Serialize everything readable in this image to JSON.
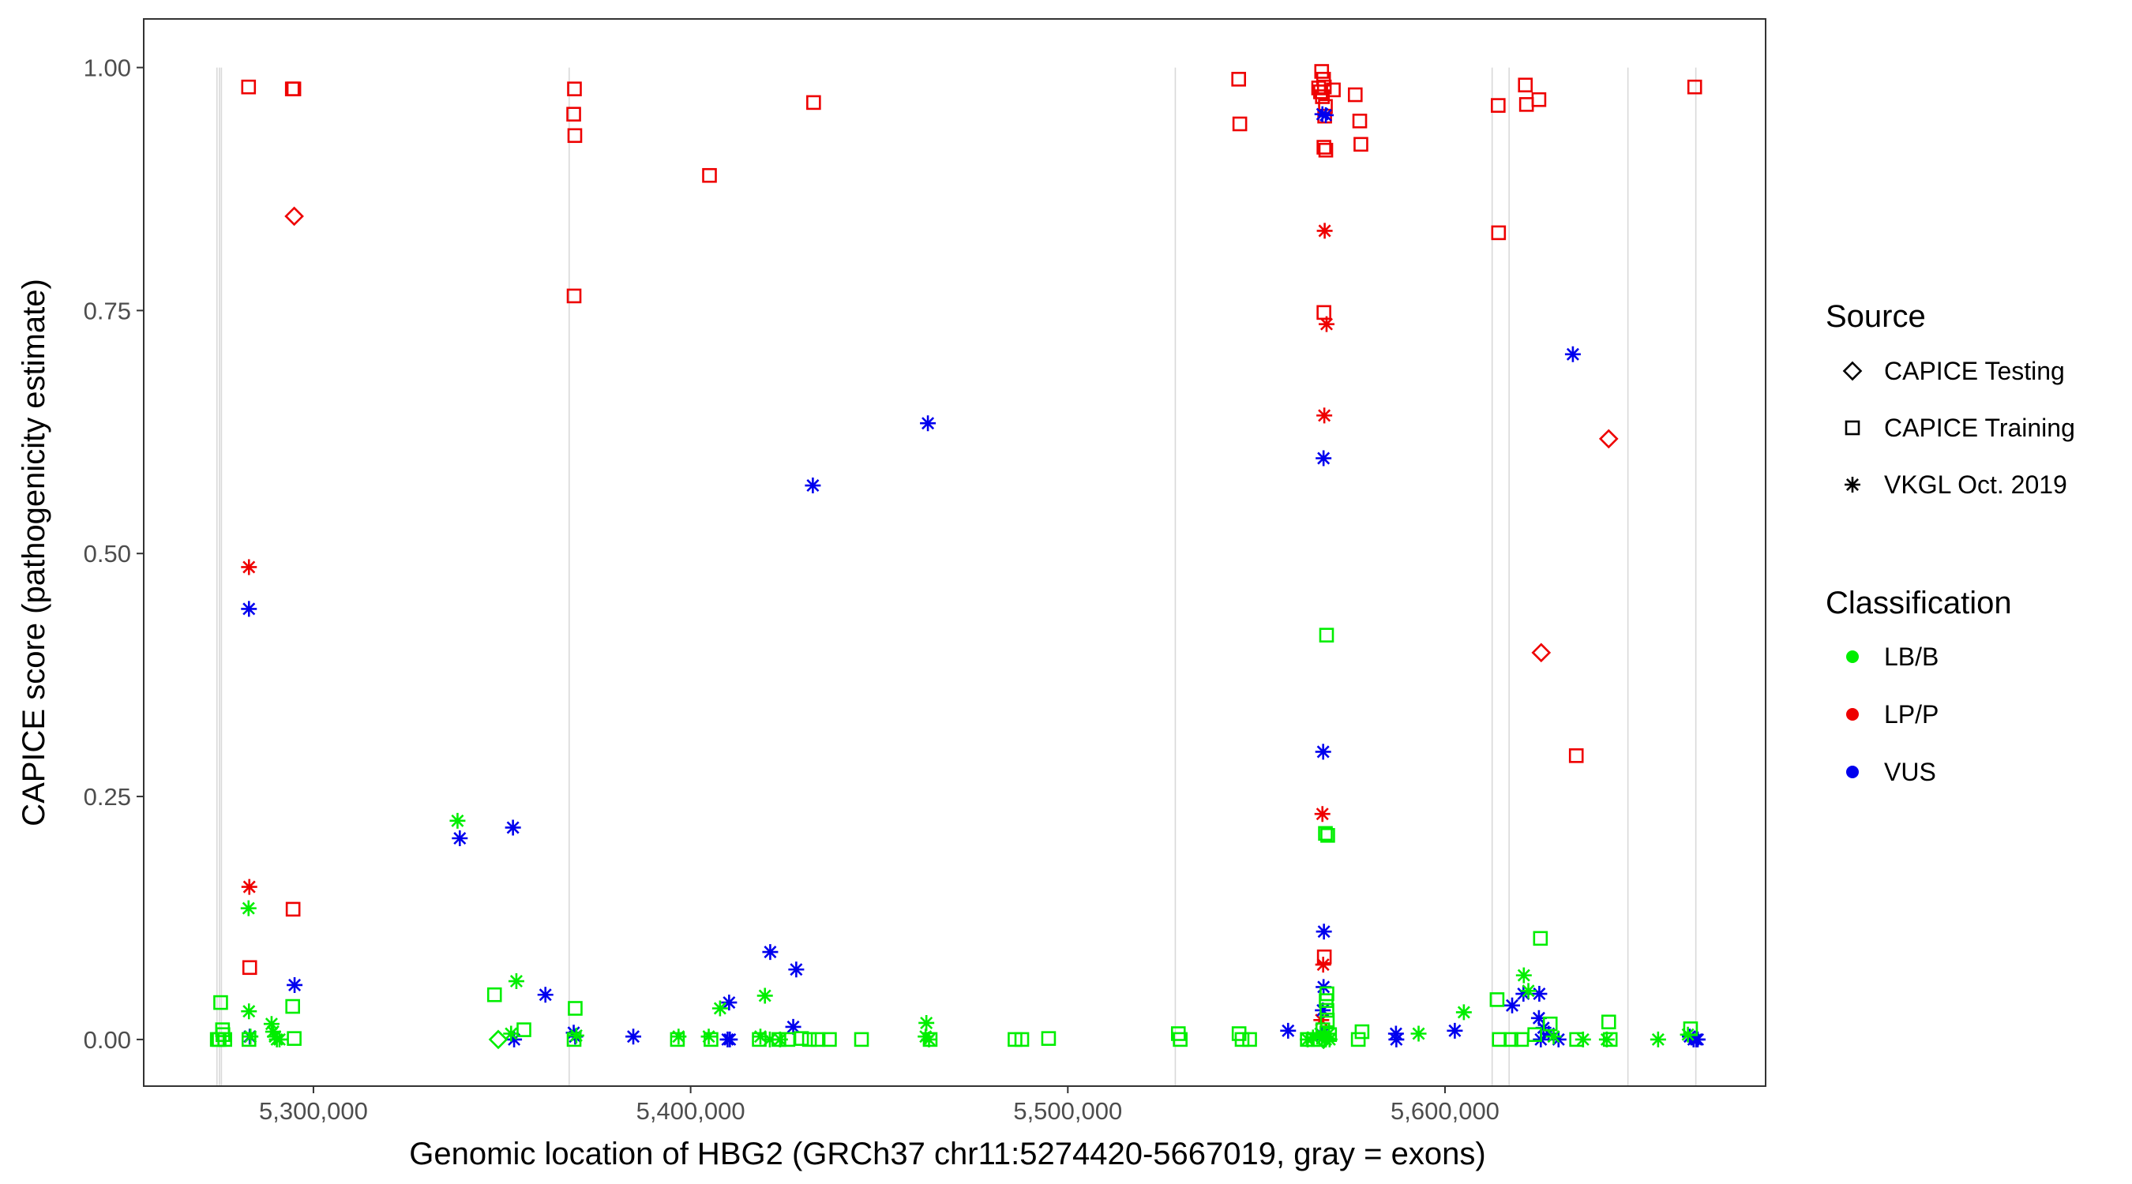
{
  "chart_data": {
    "type": "scatter",
    "xlabel": "Genomic location of HBG2 (GRCh37 chr11:5274420-5667019, gray = exons)",
    "ylabel": "CAPICE score (pathogenicity estimate)",
    "xlim": [
      5255000,
      5685000
    ],
    "ylim": [
      -0.048,
      1.05
    ],
    "grid": false,
    "x_ticks": [
      5300000,
      5400000,
      5500000,
      5600000
    ],
    "x_tick_labels": [
      "5,300,000",
      "5,400,000",
      "5,500,000",
      "5,600,000"
    ],
    "y_ticks": [
      0,
      0.25,
      0.5,
      0.75,
      1
    ],
    "y_tick_labels": [
      "0.00",
      "0.25",
      "0.50",
      "0.75",
      "1.00"
    ],
    "exon_positions": [
      5274420,
      5275100,
      5275600,
      5367800,
      5528500,
      5612500,
      5617000,
      5648500,
      5666500
    ],
    "exon_color": "#d9d9d9",
    "legend": {
      "placement": "right",
      "source_title": "Source",
      "source_items": [
        {
          "label": "CAPICE Testing",
          "shape": "diamond"
        },
        {
          "label": "CAPICE Training",
          "shape": "square"
        },
        {
          "label": "VKGL Oct. 2019",
          "shape": "asterisk"
        }
      ],
      "class_title": "Classification",
      "class_items": [
        {
          "label": "LB/B",
          "color": "#00ee00"
        },
        {
          "label": "LP/P",
          "color": "#ee0000"
        },
        {
          "label": "VUS",
          "color": "#0000ee"
        }
      ]
    },
    "colors": {
      "LB/B": "#00ee00",
      "LP/P": "#ee0000",
      "VUS": "#0000ee"
    },
    "series": [
      {
        "name": "CAPICE Training LP/P",
        "shape": "square",
        "class": "LP/P",
        "points": [
          [
            5282800,
            0.98
          ],
          [
            5294400,
            0.978
          ],
          [
            5294800,
            0.978
          ],
          [
            5369200,
            0.978
          ],
          [
            5369000,
            0.952
          ],
          [
            5369300,
            0.93
          ],
          [
            5369100,
            0.765
          ],
          [
            5405000,
            0.889
          ],
          [
            5432600,
            0.964
          ],
          [
            5545300,
            0.988
          ],
          [
            5545600,
            0.942
          ],
          [
            5566500,
            0.979
          ],
          [
            5567000,
            0.975
          ],
          [
            5567500,
            0.97
          ],
          [
            5568000,
            0.98
          ],
          [
            5567300,
            0.996
          ],
          [
            5567800,
            0.988
          ],
          [
            5568300,
            0.96
          ],
          [
            5568100,
            0.95
          ],
          [
            5567900,
            0.918
          ],
          [
            5568400,
            0.915
          ],
          [
            5570400,
            0.977
          ],
          [
            5576200,
            0.972
          ],
          [
            5577400,
            0.945
          ],
          [
            5577700,
            0.921
          ],
          [
            5614100,
            0.961
          ],
          [
            5614200,
            0.83
          ],
          [
            5621300,
            0.982
          ],
          [
            5621600,
            0.962
          ],
          [
            5624900,
            0.967
          ],
          [
            5634800,
            0.292
          ],
          [
            5666200,
            0.98
          ],
          [
            5567900,
            0.748
          ],
          [
            5568000,
            0.085
          ],
          [
            5294600,
            0.134
          ],
          [
            5283100,
            0.074
          ]
        ]
      },
      {
        "name": "CAPICE Testing LP/P",
        "shape": "diamond",
        "class": "LP/P",
        "points": [
          [
            5294900,
            0.847
          ],
          [
            5643400,
            0.618
          ],
          [
            5625500,
            0.398
          ]
        ]
      },
      {
        "name": "VKGL LP/P",
        "shape": "asterisk",
        "class": "LP/P",
        "points": [
          [
            5282900,
            0.486
          ],
          [
            5283000,
            0.157
          ],
          [
            5568100,
            0.832
          ],
          [
            5568600,
            0.736
          ],
          [
            5568000,
            0.642
          ],
          [
            5567500,
            0.232
          ],
          [
            5567700,
            0.077
          ],
          [
            5567200,
            0.02
          ]
        ]
      },
      {
        "name": "VKGL VUS",
        "shape": "asterisk",
        "class": "VUS",
        "points": [
          [
            5282900,
            0.443
          ],
          [
            5283100,
            0.003
          ],
          [
            5295000,
            0.056
          ],
          [
            5338800,
            0.207
          ],
          [
            5352900,
            0.218
          ],
          [
            5353200,
            0.0
          ],
          [
            5361500,
            0.046
          ],
          [
            5369000,
            0.007
          ],
          [
            5369400,
            0.003
          ],
          [
            5384800,
            0.003
          ],
          [
            5410200,
            0.038
          ],
          [
            5409800,
            0.0
          ],
          [
            5410400,
            0.0
          ],
          [
            5421100,
            0.09
          ],
          [
            5428000,
            0.072
          ],
          [
            5427200,
            0.013
          ],
          [
            5432400,
            0.57
          ],
          [
            5462900,
            0.634
          ],
          [
            5558400,
            0.009
          ],
          [
            5567500,
            0.952
          ],
          [
            5568400,
            0.951
          ],
          [
            5567800,
            0.598
          ],
          [
            5567700,
            0.296
          ],
          [
            5567900,
            0.111
          ],
          [
            5567800,
            0.054
          ],
          [
            5567600,
            0.03
          ],
          [
            5567400,
            0.005
          ],
          [
            5587000,
            0.006
          ],
          [
            5587100,
            0.0
          ],
          [
            5602600,
            0.009
          ],
          [
            5617800,
            0.035
          ],
          [
            5620800,
            0.047
          ],
          [
            5625000,
            0.047
          ],
          [
            5624900,
            0.022
          ],
          [
            5625400,
            0.0
          ],
          [
            5626100,
            0.012
          ],
          [
            5627500,
            0.006
          ],
          [
            5630100,
            0.0
          ],
          [
            5633900,
            0.705
          ],
          [
            5664900,
            0.003
          ],
          [
            5665900,
            0.0
          ],
          [
            5666600,
            0.0
          ],
          [
            5667000,
            0.0
          ]
        ]
      },
      {
        "name": "VKGL LB/B",
        "shape": "asterisk",
        "class": "LB/B",
        "points": [
          [
            5282800,
            0.135
          ],
          [
            5282900,
            0.029
          ],
          [
            5283300,
            0.003
          ],
          [
            5288900,
            0.016
          ],
          [
            5289300,
            0.008
          ],
          [
            5289800,
            0.003
          ],
          [
            5290300,
            0.0
          ],
          [
            5291000,
            0.0
          ],
          [
            5338200,
            0.225
          ],
          [
            5353800,
            0.06
          ],
          [
            5352400,
            0.006
          ],
          [
            5369700,
            0.004
          ],
          [
            5396800,
            0.003
          ],
          [
            5404800,
            0.003
          ],
          [
            5407800,
            0.032
          ],
          [
            5419700,
            0.045
          ],
          [
            5418500,
            0.003
          ],
          [
            5421000,
            0.0
          ],
          [
            5423700,
            0.0
          ],
          [
            5462500,
            0.017
          ],
          [
            5462300,
            0.003
          ],
          [
            5463200,
            0.0
          ],
          [
            5563600,
            0.0
          ],
          [
            5565000,
            0.002
          ],
          [
            5567000,
            0.006
          ],
          [
            5567400,
            0.001
          ],
          [
            5568400,
            0.0
          ],
          [
            5569200,
            0.006
          ],
          [
            5569400,
            0.0
          ],
          [
            5593000,
            0.006
          ],
          [
            5605000,
            0.028
          ],
          [
            5620900,
            0.066
          ],
          [
            5622100,
            0.05
          ],
          [
            5628800,
            0.003
          ],
          [
            5636600,
            0.0
          ],
          [
            5642900,
            0.0
          ],
          [
            5656500,
            0.0
          ],
          [
            5664400,
            0.005
          ]
        ]
      },
      {
        "name": "CAPICE Training LB/B",
        "shape": "square",
        "class": "LB/B",
        "points": [
          [
            5275400,
            0.038
          ],
          [
            5275900,
            0.01
          ],
          [
            5276000,
            0.005
          ],
          [
            5274500,
            0.0
          ],
          [
            5275000,
            0.0
          ],
          [
            5276500,
            0.0
          ],
          [
            5282900,
            0.0
          ],
          [
            5294500,
            0.034
          ],
          [
            5294900,
            0.001
          ],
          [
            5348000,
            0.046
          ],
          [
            5355800,
            0.01
          ],
          [
            5369400,
            0.032
          ],
          [
            5369100,
            0.0
          ],
          [
            5396500,
            0.0
          ],
          [
            5405400,
            0.0
          ],
          [
            5418200,
            0.0
          ],
          [
            5423400,
            0.0
          ],
          [
            5425800,
            0.0
          ],
          [
            5429400,
            0.001
          ],
          [
            5431500,
            0.0
          ],
          [
            5433800,
            0.0
          ],
          [
            5436800,
            0.0
          ],
          [
            5445300,
            0.0
          ],
          [
            5463500,
            0.0
          ],
          [
            5486000,
            0.0
          ],
          [
            5487800,
            0.0
          ],
          [
            5494900,
            0.001
          ],
          [
            5529300,
            0.006
          ],
          [
            5529800,
            0.0
          ],
          [
            5545400,
            0.006
          ],
          [
            5546200,
            0.0
          ],
          [
            5548200,
            0.0
          ],
          [
            5563500,
            0.0
          ],
          [
            5565000,
            0.0
          ],
          [
            5566400,
            0.0
          ],
          [
            5567600,
            0.01
          ],
          [
            5568600,
            0.416
          ],
          [
            5568300,
            0.212
          ],
          [
            5568900,
            0.21
          ],
          [
            5568700,
            0.047
          ],
          [
            5568500,
            0.04
          ],
          [
            5568700,
            0.03
          ],
          [
            5568800,
            0.02
          ],
          [
            5569400,
            0.005
          ],
          [
            5577000,
            0.0
          ],
          [
            5578000,
            0.008
          ],
          [
            5613800,
            0.041
          ],
          [
            5614400,
            0.0
          ],
          [
            5617500,
            0.0
          ],
          [
            5620300,
            0.0
          ],
          [
            5623800,
            0.005
          ],
          [
            5625300,
            0.104
          ],
          [
            5627900,
            0.016
          ],
          [
            5634900,
            0.0
          ],
          [
            5643400,
            0.018
          ],
          [
            5643800,
            0.0
          ],
          [
            5665100,
            0.011
          ]
        ]
      },
      {
        "name": "CAPICE Testing LB/B",
        "shape": "diamond",
        "class": "LB/B",
        "points": [
          [
            5349000,
            0.0
          ],
          [
            5567800,
            0.0
          ]
        ]
      }
    ]
  }
}
